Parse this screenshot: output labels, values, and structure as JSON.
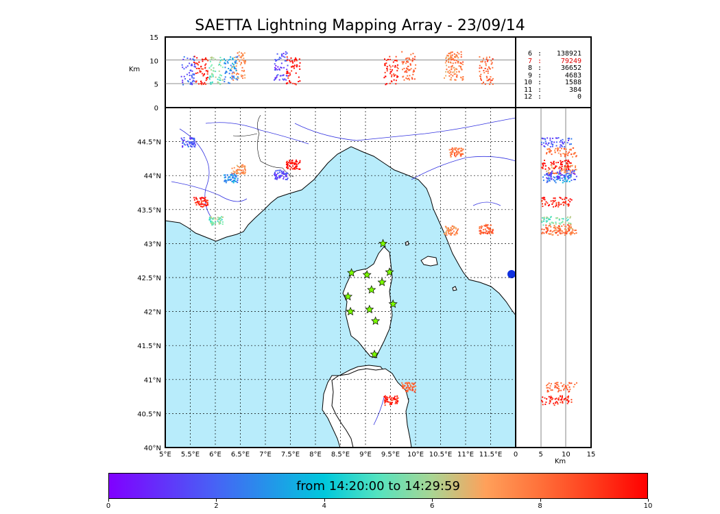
{
  "title": "SAETTA Lightning Mapping Array - 23/09/14",
  "axes": {
    "lon_ticks": [
      "5°E",
      "5.5°E",
      "6°E",
      "6.5°E",
      "7°E",
      "7.5°E",
      "8°E",
      "8.5°E",
      "9°E",
      "9.5°E",
      "10°E",
      "10.5°E",
      "11°E",
      "11.5°E"
    ],
    "lat_ticks": [
      "40°N",
      "40.5°N",
      "41°N",
      "41.5°N",
      "42°N",
      "42.5°N",
      "43°N",
      "43.5°N",
      "44°N",
      "44.5°N"
    ],
    "alt_ticks": [
      "0",
      "5",
      "10",
      "15"
    ],
    "alt_label": "Km",
    "lon_range": [
      5,
      12
    ],
    "lat_range": [
      40,
      45
    ],
    "alt_range": [
      0,
      15
    ]
  },
  "stats": [
    {
      "k": "6",
      "sep": ":",
      "v": "138921",
      "highlight": false
    },
    {
      "k": "7",
      "sep": ":",
      "v": "79249",
      "highlight": true
    },
    {
      "k": "8",
      "sep": ":",
      "v": "36652",
      "highlight": false
    },
    {
      "k": "9",
      "sep": ":",
      "v": "4683",
      "highlight": false
    },
    {
      "k": "10",
      "sep": ":",
      "v": "1588",
      "highlight": false
    },
    {
      "k": "11",
      "sep": ":",
      "v": "384",
      "highlight": false
    },
    {
      "k": "12",
      "sep": ":",
      "v": "0",
      "highlight": false
    }
  ],
  "colorbar": {
    "label": "from 14:20:00 to 14:29:59",
    "ticks": [
      "0",
      "2",
      "4",
      "6",
      "8",
      "10"
    ],
    "range": [
      0,
      10
    ]
  },
  "colors": {
    "sea": "#b8ecfb",
    "early": "#5050f0",
    "mid": "#7ef0b0",
    "late": "#ff5a2a",
    "later": "#ff9a5a",
    "station": "#7cfc00"
  },
  "stations": [
    {
      "lon": 9.35,
      "lat": 43.0
    },
    {
      "lon": 8.72,
      "lat": 42.57
    },
    {
      "lon": 9.03,
      "lat": 42.54
    },
    {
      "lon": 9.48,
      "lat": 42.58
    },
    {
      "lon": 9.33,
      "lat": 42.43
    },
    {
      "lon": 9.12,
      "lat": 42.32
    },
    {
      "lon": 8.65,
      "lat": 42.22
    },
    {
      "lon": 9.55,
      "lat": 42.11
    },
    {
      "lon": 9.08,
      "lat": 42.03
    },
    {
      "lon": 8.7,
      "lat": 42.0
    },
    {
      "lon": 9.2,
      "lat": 41.86
    },
    {
      "lon": 9.18,
      "lat": 41.37
    }
  ],
  "storms": [
    {
      "lon": 5.45,
      "lat": 44.5,
      "tmin": 0.8,
      "alt": 8
    },
    {
      "lon": 6.45,
      "lat": 44.1,
      "tmin": 6.5,
      "alt": 9
    },
    {
      "lon": 6.3,
      "lat": 43.97,
      "tmin": 2.0,
      "alt": 8
    },
    {
      "lon": 7.3,
      "lat": 44.02,
      "tmin": 0.5,
      "alt": 9
    },
    {
      "lon": 7.55,
      "lat": 44.17,
      "tmin": 9.0,
      "alt": 8
    },
    {
      "lon": 5.7,
      "lat": 43.62,
      "tmin": 8.5,
      "alt": 8
    },
    {
      "lon": 6.0,
      "lat": 43.35,
      "tmin": 4.5,
      "alt": 8
    },
    {
      "lon": 10.8,
      "lat": 44.35,
      "tmin": 7.0,
      "alt": 9
    },
    {
      "lon": 10.7,
      "lat": 43.2,
      "tmin": 6.5,
      "alt": 9
    },
    {
      "lon": 11.4,
      "lat": 43.22,
      "tmin": 7.5,
      "alt": 8
    },
    {
      "lon": 9.5,
      "lat": 40.7,
      "tmin": 8.5,
      "alt": 8
    },
    {
      "lon": 9.85,
      "lat": 40.9,
      "tmin": 7.5,
      "alt": 9
    }
  ]
}
